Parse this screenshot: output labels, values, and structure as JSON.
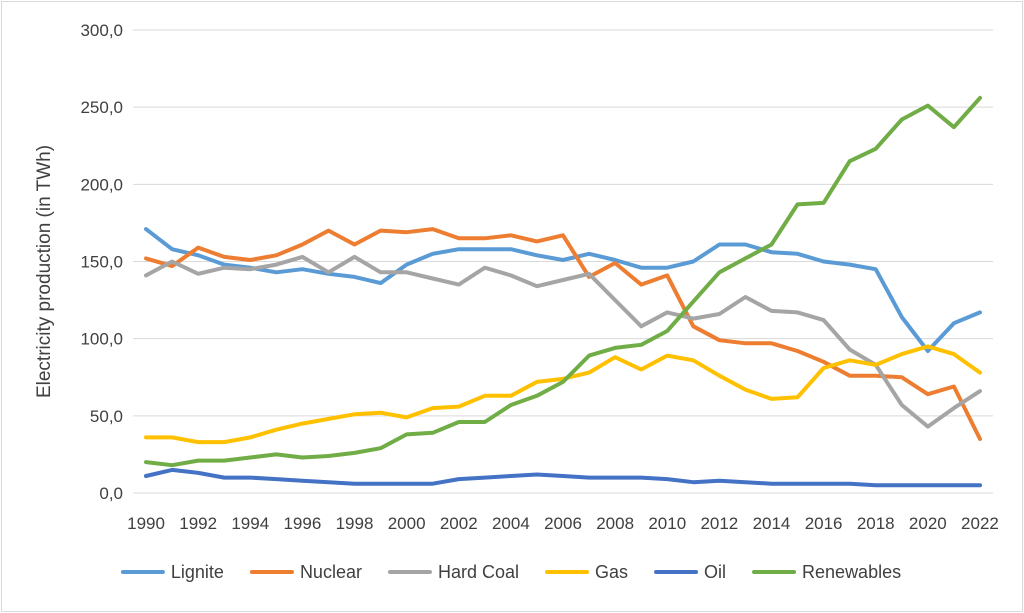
{
  "chart_data": {
    "type": "line",
    "title": "",
    "xlabel": "",
    "ylabel": "Electricity production (in TWh)",
    "ylim": [
      0,
      300
    ],
    "y_ticks": [
      "0,0",
      "50,0",
      "100,0",
      "150,0",
      "200,0",
      "250,0",
      "300,0"
    ],
    "x_tick_labels": [
      "1990",
      "1992",
      "1994",
      "1996",
      "1998",
      "2000",
      "2002",
      "2004",
      "2006",
      "2008",
      "2010",
      "2012",
      "2014",
      "2016",
      "2018",
      "2020",
      "2022"
    ],
    "grid": "horizontal",
    "legend_position": "bottom",
    "x": [
      1990,
      1991,
      1992,
      1993,
      1994,
      1995,
      1996,
      1997,
      1998,
      1999,
      2000,
      2001,
      2002,
      2003,
      2004,
      2005,
      2006,
      2007,
      2008,
      2009,
      2010,
      2011,
      2012,
      2013,
      2014,
      2015,
      2016,
      2017,
      2018,
      2019,
      2020,
      2021,
      2022
    ],
    "series": [
      {
        "name": "Lignite",
        "color": "#5b9bd5",
        "values": [
          171,
          158,
          154,
          148,
          146,
          143,
          145,
          142,
          140,
          136,
          148,
          155,
          158,
          158,
          158,
          154,
          151,
          155,
          151,
          146,
          146,
          150,
          161,
          161,
          156,
          155,
          150,
          148,
          145,
          114,
          92,
          110,
          117
        ]
      },
      {
        "name": "Nuclear",
        "color": "#ed7d31",
        "values": [
          152,
          147,
          159,
          153,
          151,
          154,
          161,
          170,
          161,
          170,
          169,
          171,
          165,
          165,
          167,
          163,
          167,
          140,
          149,
          135,
          141,
          108,
          99,
          97,
          97,
          92,
          85,
          76,
          76,
          75,
          64,
          69,
          35
        ]
      },
      {
        "name": "Hard Coal",
        "color": "#a5a5a5",
        "values": [
          141,
          150,
          142,
          146,
          145,
          148,
          153,
          143,
          153,
          143,
          143,
          139,
          135,
          146,
          141,
          134,
          138,
          142,
          125,
          108,
          117,
          113,
          116,
          127,
          118,
          117,
          112,
          93,
          83,
          57,
          43,
          55,
          66
        ]
      },
      {
        "name": "Gas",
        "color": "#ffc000",
        "values": [
          36,
          36,
          33,
          33,
          36,
          41,
          45,
          48,
          51,
          52,
          49,
          55,
          56,
          63,
          63,
          72,
          74,
          78,
          88,
          80,
          89,
          86,
          76,
          67,
          61,
          62,
          81,
          86,
          83,
          90,
          95,
          90,
          78
        ]
      },
      {
        "name": "Oil",
        "color": "#4472c4",
        "values": [
          11,
          15,
          13,
          10,
          10,
          9,
          8,
          7,
          6,
          6,
          6,
          6,
          9,
          10,
          11,
          12,
          11,
          10,
          10,
          10,
          9,
          7,
          8,
          7,
          6,
          6,
          6,
          6,
          5,
          5,
          5,
          5,
          5
        ]
      },
      {
        "name": "Renewables",
        "color": "#70ad47",
        "values": [
          20,
          18,
          21,
          21,
          23,
          25,
          23,
          24,
          26,
          29,
          38,
          39,
          46,
          46,
          57,
          63,
          72,
          89,
          94,
          96,
          105,
          124,
          143,
          152,
          161,
          187,
          188,
          215,
          223,
          242,
          251,
          237,
          256
        ]
      }
    ]
  }
}
